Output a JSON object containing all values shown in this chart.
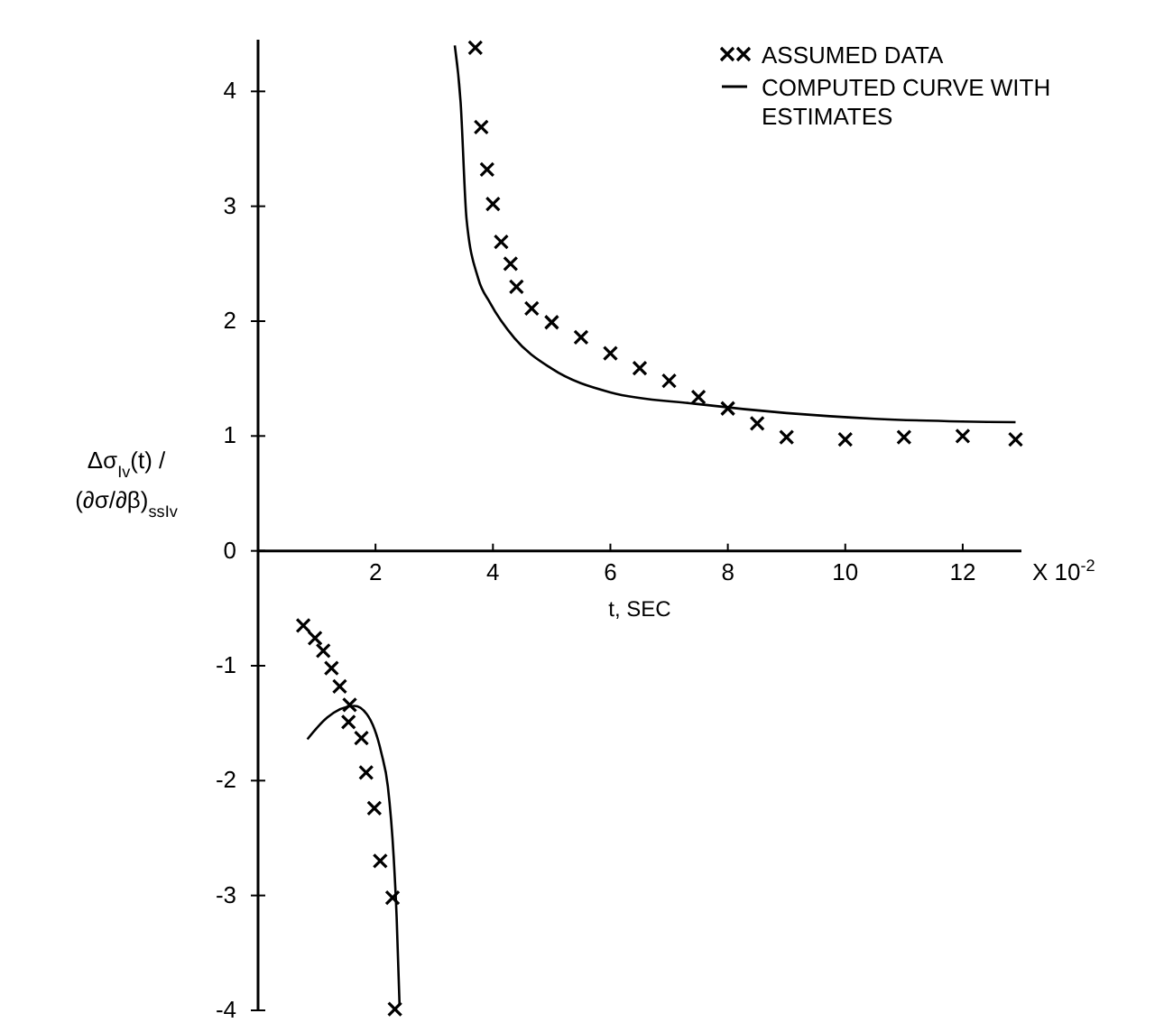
{
  "chart_data": {
    "type": "scatter",
    "ylabel": "Δσ$_{Iv}$(t) / (∂σ/∂β)$_{ssIv}$",
    "xlabel": "t, SEC",
    "annotations": [
      "X 10$^{-2}$"
    ],
    "xlim": [
      0,
      13
    ],
    "xticks": [
      2,
      4,
      6,
      8,
      10,
      12
    ],
    "ylim": [
      -4,
      4.45
    ],
    "yticks": [
      -4,
      -3,
      -2,
      -1,
      0,
      1,
      2,
      3,
      4
    ],
    "grid": false,
    "legend": "top right",
    "marker": "cross",
    "series": [
      {
        "name": "ASSUMED DATA",
        "color": "#000000",
        "x": [
          0.77,
          0.97,
          1.11,
          1.25,
          1.39,
          1.56,
          1.54,
          1.76,
          1.84,
          1.98,
          2.08,
          2.29,
          2.33,
          3.7,
          3.8,
          3.9,
          4.0,
          4.14,
          4.3,
          4.4,
          4.66,
          5.0,
          5.5,
          6.0,
          6.5,
          7.0,
          7.5,
          8.0,
          8.5,
          9.0,
          10.0,
          11.0,
          12.0,
          12.9
        ],
        "values": [
          -0.65,
          -0.76,
          -0.87,
          -1.02,
          -1.18,
          -1.34,
          -1.49,
          -1.63,
          -1.93,
          -2.24,
          -2.7,
          -3.02,
          -3.99,
          4.38,
          3.69,
          3.32,
          3.02,
          2.69,
          2.5,
          2.3,
          2.11,
          1.99,
          1.86,
          1.72,
          1.59,
          1.48,
          1.34,
          1.24,
          1.11,
          0.99,
          0.97,
          0.99,
          1.0,
          0.97
        ]
      },
      {
        "name": "COMPUTED CURVE WITH ESTIMATES",
        "type": "line",
        "marker": "none",
        "line_style": "solid",
        "color": "#000000",
        "x": [
          0.84,
          1.18,
          1.64,
          1.85,
          2.1,
          2.21,
          2.31,
          2.36,
          2.41,
          3.0,
          3.35,
          3.45,
          3.55,
          3.75,
          3.95,
          4.37,
          4.99,
          6.0,
          7.45,
          9.0,
          10.5,
          12.9
        ],
        "values": [
          -1.64,
          -1.45,
          -1.35,
          -1.42,
          -1.76,
          -2.05,
          -2.67,
          -3.19,
          -3.96,
          null,
          4.4,
          3.9,
          2.89,
          2.37,
          2.16,
          1.85,
          1.59,
          1.38,
          1.28,
          1.2,
          1.15,
          1.12
        ]
      }
    ]
  }
}
